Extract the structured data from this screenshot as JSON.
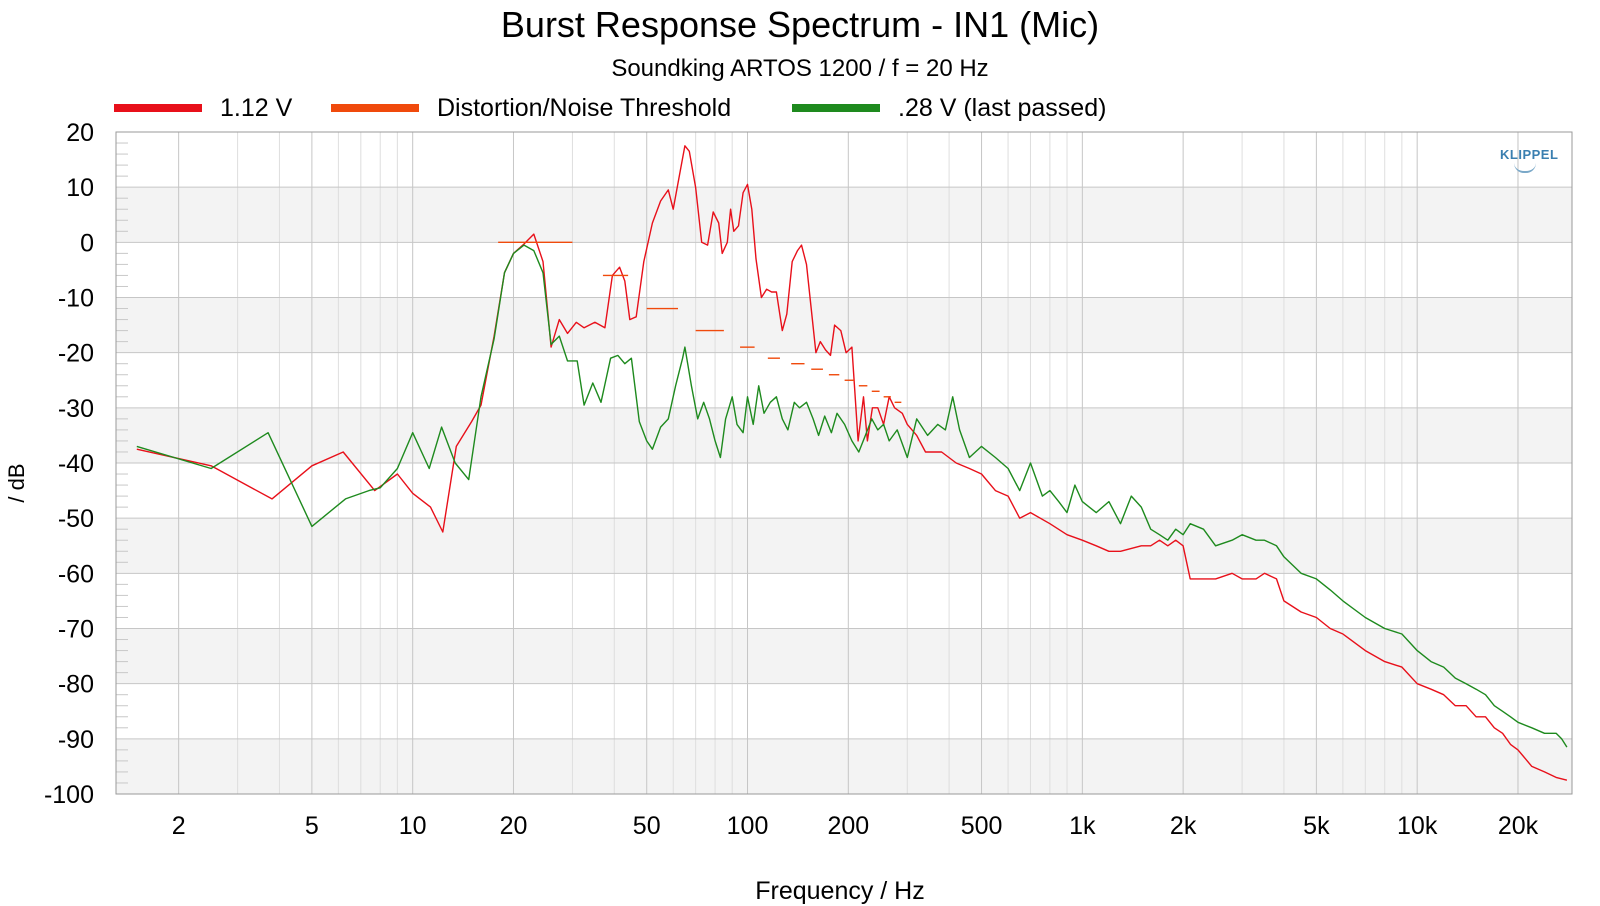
{
  "chart_data": {
    "type": "line",
    "title": "Burst Response Spectrum - IN1 (Mic)",
    "subtitle": "Soundking ARTOS 1200 / f = 20 Hz",
    "xlabel": "Frequency / Hz",
    "ylabel": "/ dB",
    "x_scale": "log",
    "xlim": [
      1.3,
      29000
    ],
    "ylim": [
      -100,
      20
    ],
    "x_ticks": [
      2,
      5,
      10,
      20,
      50,
      100,
      200,
      500,
      1000,
      2000,
      5000,
      10000,
      20000
    ],
    "x_tick_labels": [
      "2",
      "5",
      "10",
      "20",
      "50",
      "100",
      "200",
      "500",
      "1k",
      "2k",
      "5k",
      "10k",
      "20k"
    ],
    "y_ticks": [
      20,
      10,
      0,
      -10,
      -20,
      -30,
      -40,
      -50,
      -60,
      -70,
      -80,
      -90,
      -100
    ],
    "grid": true,
    "legend_position": "top",
    "logo_text": "KLIPPEL",
    "series": [
      {
        "name": "1.12 V",
        "color": "#e8101a",
        "points": [
          [
            1.5,
            -37.5
          ],
          [
            2.5,
            -40.5
          ],
          [
            3.8,
            -46.5
          ],
          [
            5,
            -40.5
          ],
          [
            6.2,
            -38
          ],
          [
            7.7,
            -45
          ],
          [
            9,
            -42
          ],
          [
            10,
            -45.5
          ],
          [
            11.3,
            -48
          ],
          [
            12.3,
            -52.5
          ],
          [
            13.5,
            -37
          ],
          [
            15,
            -32.5
          ],
          [
            16,
            -29.5
          ],
          [
            17.5,
            -17
          ],
          [
            18.8,
            -5.5
          ],
          [
            20,
            -2
          ],
          [
            21.5,
            -0.3
          ],
          [
            23,
            1.5
          ],
          [
            24.5,
            -3.5
          ],
          [
            25.9,
            -19
          ],
          [
            27.4,
            -14
          ],
          [
            29,
            -16.5
          ],
          [
            30.8,
            -14.5
          ],
          [
            32.5,
            -15.5
          ],
          [
            35,
            -14.5
          ],
          [
            37.5,
            -15.5
          ],
          [
            39.5,
            -6
          ],
          [
            41.5,
            -4.5
          ],
          [
            43,
            -7
          ],
          [
            44.5,
            -14
          ],
          [
            46.5,
            -13.5
          ],
          [
            49,
            -3.5
          ],
          [
            52,
            3.5
          ],
          [
            55,
            7.5
          ],
          [
            58,
            9.5
          ],
          [
            60,
            6
          ],
          [
            63,
            13
          ],
          [
            65,
            17.5
          ],
          [
            67,
            16.5
          ],
          [
            70,
            10
          ],
          [
            73,
            0
          ],
          [
            76,
            -0.5
          ],
          [
            79,
            5.5
          ],
          [
            82,
            3.5
          ],
          [
            84,
            -2
          ],
          [
            87,
            0
          ],
          [
            89,
            6
          ],
          [
            91,
            2
          ],
          [
            94,
            3
          ],
          [
            97,
            9
          ],
          [
            100,
            10.5
          ],
          [
            103,
            6
          ],
          [
            106,
            -3
          ],
          [
            110,
            -10
          ],
          [
            114,
            -8.5
          ],
          [
            118,
            -9
          ],
          [
            122,
            -9
          ],
          [
            127,
            -16
          ],
          [
            131,
            -13
          ],
          [
            136,
            -3.5
          ],
          [
            141,
            -1.5
          ],
          [
            145,
            -0.5
          ],
          [
            150,
            -4
          ],
          [
            155,
            -12
          ],
          [
            160,
            -20
          ],
          [
            165,
            -18
          ],
          [
            171,
            -19.5
          ],
          [
            177,
            -20.5
          ],
          [
            182,
            -15
          ],
          [
            190,
            -16
          ],
          [
            197,
            -20
          ],
          [
            205,
            -19
          ],
          [
            214,
            -36
          ],
          [
            222,
            -28
          ],
          [
            228,
            -36
          ],
          [
            236,
            -30
          ],
          [
            245,
            -30
          ],
          [
            255,
            -33
          ],
          [
            265,
            -28
          ],
          [
            275,
            -30
          ],
          [
            290,
            -31
          ],
          [
            300,
            -33
          ],
          [
            320,
            -35
          ],
          [
            340,
            -38
          ],
          [
            380,
            -38
          ],
          [
            420,
            -40
          ],
          [
            460,
            -41
          ],
          [
            500,
            -42
          ],
          [
            550,
            -45
          ],
          [
            600,
            -46
          ],
          [
            650,
            -50
          ],
          [
            700,
            -49
          ],
          [
            800,
            -51
          ],
          [
            900,
            -53
          ],
          [
            1000,
            -54
          ],
          [
            1100,
            -55
          ],
          [
            1200,
            -56
          ],
          [
            1300,
            -56
          ],
          [
            1500,
            -55
          ],
          [
            1600,
            -55
          ],
          [
            1700,
            -54
          ],
          [
            1800,
            -55
          ],
          [
            1900,
            -54
          ],
          [
            2000,
            -55
          ],
          [
            2100,
            -61
          ],
          [
            2500,
            -61
          ],
          [
            2800,
            -60
          ],
          [
            3000,
            -61
          ],
          [
            3300,
            -61
          ],
          [
            3500,
            -60
          ],
          [
            3800,
            -61
          ],
          [
            4000,
            -65
          ],
          [
            4500,
            -67
          ],
          [
            5000,
            -68
          ],
          [
            5500,
            -70
          ],
          [
            6000,
            -71
          ],
          [
            7000,
            -74
          ],
          [
            8000,
            -76
          ],
          [
            9000,
            -77
          ],
          [
            10000,
            -80
          ],
          [
            11000,
            -81
          ],
          [
            12000,
            -82
          ],
          [
            13000,
            -84
          ],
          [
            14000,
            -84
          ],
          [
            15000,
            -86
          ],
          [
            16000,
            -86
          ],
          [
            17000,
            -88
          ],
          [
            18000,
            -89
          ],
          [
            19000,
            -91
          ],
          [
            20000,
            -92
          ],
          [
            22000,
            -95
          ],
          [
            24000,
            -96
          ],
          [
            26000,
            -97
          ],
          [
            28000,
            -97.5
          ]
        ]
      },
      {
        "name": "Distortion/Noise Threshold",
        "color": "#f04a0c",
        "segments": [
          [
            [
              18,
              0
            ],
            [
              30,
              0
            ]
          ],
          [
            [
              37,
              -6
            ],
            [
              44,
              -6
            ]
          ],
          [
            [
              50,
              -12
            ],
            [
              62,
              -12
            ]
          ],
          [
            [
              70,
              -16
            ],
            [
              85,
              -16
            ]
          ],
          [
            [
              95,
              -19
            ],
            [
              105,
              -19
            ]
          ],
          [
            [
              115,
              -21
            ],
            [
              125,
              -21
            ]
          ],
          [
            [
              135,
              -22
            ],
            [
              148,
              -22
            ]
          ],
          [
            [
              155,
              -23
            ],
            [
              168,
              -23
            ]
          ],
          [
            [
              175,
              -24
            ],
            [
              188,
              -24
            ]
          ],
          [
            [
              195,
              -25
            ],
            [
              208,
              -25
            ]
          ],
          [
            [
              215,
              -26
            ],
            [
              228,
              -26
            ]
          ],
          [
            [
              235,
              -27
            ],
            [
              248,
              -27
            ]
          ],
          [
            [
              255,
              -28
            ],
            [
              268,
              -28
            ]
          ],
          [
            [
              275,
              -29
            ],
            [
              288,
              -29
            ]
          ]
        ]
      },
      {
        "name": ".28 V (last passed)",
        "color": "#1e8a1e",
        "points": [
          [
            1.5,
            -37
          ],
          [
            2.5,
            -41
          ],
          [
            3.7,
            -34.5
          ],
          [
            5,
            -51.5
          ],
          [
            6.3,
            -46.5
          ],
          [
            7.4,
            -45
          ],
          [
            8,
            -44.5
          ],
          [
            9,
            -41
          ],
          [
            10,
            -34.5
          ],
          [
            11.2,
            -41
          ],
          [
            12.2,
            -33.5
          ],
          [
            13.4,
            -40
          ],
          [
            14.7,
            -43
          ],
          [
            16,
            -28
          ],
          [
            17.5,
            -17.5
          ],
          [
            18.8,
            -5.5
          ],
          [
            20,
            -2
          ],
          [
            21.5,
            -0.5
          ],
          [
            23,
            -1.5
          ],
          [
            24.5,
            -5.5
          ],
          [
            25.9,
            -18.5
          ],
          [
            27.4,
            -17
          ],
          [
            29,
            -21.5
          ],
          [
            31,
            -21.5
          ],
          [
            32.5,
            -29.5
          ],
          [
            34.5,
            -25.5
          ],
          [
            36.5,
            -29
          ],
          [
            39,
            -21
          ],
          [
            41,
            -20.5
          ],
          [
            43,
            -22
          ],
          [
            45,
            -21
          ],
          [
            47.5,
            -32.5
          ],
          [
            50,
            -36
          ],
          [
            52,
            -37.5
          ],
          [
            55,
            -33.5
          ],
          [
            58,
            -32
          ],
          [
            61,
            -26
          ],
          [
            64,
            -21
          ],
          [
            65,
            -19
          ],
          [
            68,
            -26
          ],
          [
            71,
            -32
          ],
          [
            74,
            -29
          ],
          [
            77,
            -32
          ],
          [
            80,
            -36
          ],
          [
            83,
            -39
          ],
          [
            86,
            -32
          ],
          [
            90,
            -28
          ],
          [
            93,
            -33
          ],
          [
            97,
            -34.5
          ],
          [
            100,
            -28
          ],
          [
            104,
            -33
          ],
          [
            108,
            -26
          ],
          [
            112,
            -31
          ],
          [
            117,
            -29
          ],
          [
            122,
            -28
          ],
          [
            127,
            -32
          ],
          [
            132,
            -34
          ],
          [
            138,
            -29
          ],
          [
            143,
            -30
          ],
          [
            150,
            -29
          ],
          [
            157,
            -32
          ],
          [
            163,
            -35
          ],
          [
            170,
            -31.5
          ],
          [
            178,
            -34.5
          ],
          [
            185,
            -31
          ],
          [
            195,
            -33
          ],
          [
            205,
            -36
          ],
          [
            215,
            -38
          ],
          [
            225,
            -35
          ],
          [
            235,
            -32
          ],
          [
            245,
            -34
          ],
          [
            255,
            -33
          ],
          [
            265,
            -36
          ],
          [
            280,
            -34
          ],
          [
            300,
            -39
          ],
          [
            320,
            -32
          ],
          [
            345,
            -35
          ],
          [
            370,
            -33
          ],
          [
            390,
            -34
          ],
          [
            410,
            -28
          ],
          [
            430,
            -34
          ],
          [
            460,
            -39
          ],
          [
            500,
            -37
          ],
          [
            550,
            -39
          ],
          [
            600,
            -41
          ],
          [
            650,
            -45
          ],
          [
            700,
            -40
          ],
          [
            760,
            -46
          ],
          [
            800,
            -45
          ],
          [
            850,
            -47
          ],
          [
            900,
            -49
          ],
          [
            950,
            -44
          ],
          [
            1000,
            -47
          ],
          [
            1100,
            -49
          ],
          [
            1200,
            -47
          ],
          [
            1300,
            -51
          ],
          [
            1400,
            -46
          ],
          [
            1500,
            -48
          ],
          [
            1600,
            -52
          ],
          [
            1700,
            -53
          ],
          [
            1800,
            -54
          ],
          [
            1900,
            -52
          ],
          [
            2000,
            -53
          ],
          [
            2100,
            -51
          ],
          [
            2300,
            -52
          ],
          [
            2500,
            -55
          ],
          [
            2800,
            -54
          ],
          [
            3000,
            -53
          ],
          [
            3300,
            -54
          ],
          [
            3500,
            -54
          ],
          [
            3800,
            -55
          ],
          [
            4000,
            -57
          ],
          [
            4500,
            -60
          ],
          [
            5000,
            -61
          ],
          [
            5500,
            -63
          ],
          [
            6000,
            -65
          ],
          [
            7000,
            -68
          ],
          [
            8000,
            -70
          ],
          [
            9000,
            -71
          ],
          [
            10000,
            -74
          ],
          [
            11000,
            -76
          ],
          [
            12000,
            -77
          ],
          [
            13000,
            -79
          ],
          [
            14000,
            -80
          ],
          [
            15000,
            -81
          ],
          [
            16000,
            -82
          ],
          [
            17000,
            -84
          ],
          [
            18000,
            -85
          ],
          [
            19000,
            -86
          ],
          [
            20000,
            -87
          ],
          [
            22000,
            -88
          ],
          [
            24000,
            -89
          ],
          [
            26000,
            -89
          ],
          [
            27000,
            -90
          ],
          [
            28000,
            -91.5
          ]
        ]
      }
    ]
  }
}
